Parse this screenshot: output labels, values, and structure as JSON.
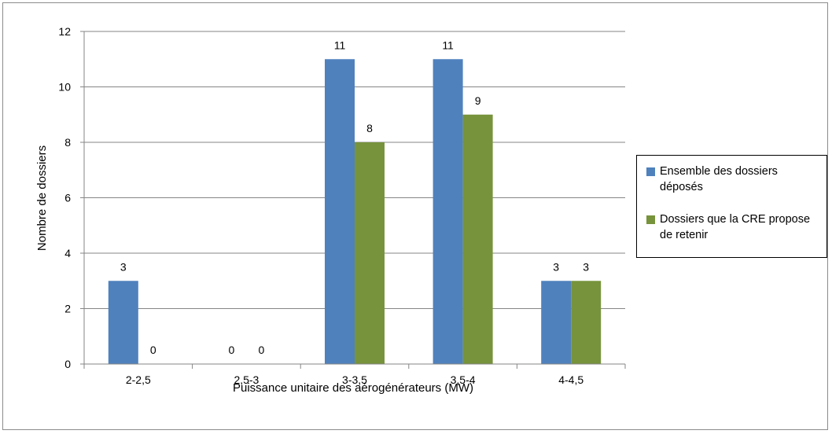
{
  "chart_data": {
    "type": "bar",
    "title": "",
    "xlabel": "Puissance unitaire des aérogénérateurs (MW)",
    "ylabel": "Nombre de dossiers",
    "categories": [
      "2-2,5",
      "2,5-3",
      "3-3,5",
      "3,5-4",
      "4-4,5"
    ],
    "series": [
      {
        "name": "Ensemble des dossiers déposés",
        "values": [
          3,
          0,
          11,
          11,
          3
        ],
        "color": "#4F81BD"
      },
      {
        "name": "Dossiers que la CRE propose de retenir",
        "values": [
          0,
          0,
          8,
          9,
          3
        ],
        "color": "#77933C"
      }
    ],
    "ylim": [
      0,
      12
    ],
    "yticks": [
      0,
      2,
      4,
      6,
      8,
      10,
      12
    ],
    "grid": true,
    "legend_position": "right",
    "data_labels": true
  },
  "legend": {
    "items": [
      {
        "label": "Ensemble des dossiers déposés",
        "color": "#4F81BD"
      },
      {
        "label": "Dossiers que la CRE propose de retenir",
        "color": "#77933C"
      }
    ]
  }
}
